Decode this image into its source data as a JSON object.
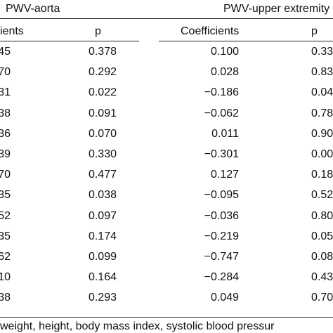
{
  "table": {
    "group_headers": [
      "PWV-aorta",
      "PWV-upper extremity"
    ],
    "column_headers": [
      "ients",
      "p",
      "Coefficients",
      "p"
    ],
    "rows": [
      [
        "45",
        "0.378",
        "0.100",
        "0.33"
      ],
      [
        "70",
        "0.292",
        "0.028",
        "0.83"
      ],
      [
        "31",
        "0.022",
        "−0.186",
        "0.04"
      ],
      [
        "38",
        "0.091",
        "−0.062",
        "0.78"
      ],
      [
        "36",
        "0.070",
        "0.011",
        "0.90"
      ],
      [
        "39",
        "0.330",
        "−0.301",
        "0.00"
      ],
      [
        "70",
        "0.477",
        "0.127",
        "0.18"
      ],
      [
        "35",
        "0.038",
        "−0.095",
        "0.52"
      ],
      [
        "52",
        "0.097",
        "−0.036",
        "0.80"
      ],
      [
        "35",
        "0.174",
        "−0.219",
        "0.05"
      ],
      [
        "62",
        "0.099",
        "−0.747",
        "0.08"
      ],
      [
        "10",
        "0.164",
        "−0.284",
        "0.43"
      ],
      [
        "38",
        "0.293",
        "0.049",
        "0.70"
      ]
    ],
    "footnote": "weight, height, body mass index, systolic blood pressur"
  }
}
